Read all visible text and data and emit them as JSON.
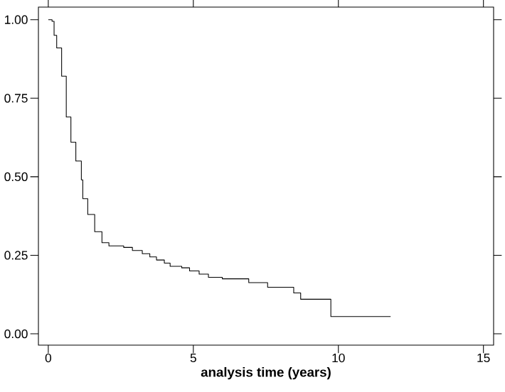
{
  "chart_data": {
    "type": "step",
    "xlabel": "analysis time (years)",
    "x": [
      0,
      0.13,
      0.2,
      0.29,
      0.46,
      0.62,
      0.78,
      0.95,
      1.14,
      1.19,
      1.36,
      1.6,
      1.85,
      2.09,
      2.6,
      2.9,
      3.24,
      3.5,
      3.73,
      4.0,
      4.2,
      4.6,
      4.87,
      5.2,
      5.52,
      6.0,
      6.91,
      7.56,
      8.46,
      8.7,
      9.74,
      11.8
    ],
    "values": [
      1.0,
      0.995,
      0.95,
      0.91,
      0.82,
      0.69,
      0.61,
      0.55,
      0.49,
      0.43,
      0.38,
      0.325,
      0.29,
      0.28,
      0.275,
      0.265,
      0.255,
      0.245,
      0.235,
      0.225,
      0.215,
      0.21,
      0.2,
      0.19,
      0.18,
      0.175,
      0.163,
      0.148,
      0.13,
      0.11,
      0.055,
      0.055
    ],
    "color": "#000000",
    "xlim": [
      -0.34,
      15.35
    ],
    "ylim": [
      -0.036,
      1.04
    ],
    "xticks": [
      0,
      5,
      10,
      15
    ],
    "yticks": [
      {
        "value": 0,
        "label": "0.00"
      },
      {
        "value": 0.25,
        "label": "0.25"
      },
      {
        "value": 0.5,
        "label": "0.50"
      },
      {
        "value": 0.75,
        "label": "0.75"
      },
      {
        "value": 1,
        "label": "1.00"
      }
    ],
    "tick_labels": "xy",
    "grid": false,
    "marker": "none",
    "line_style": "solid"
  }
}
